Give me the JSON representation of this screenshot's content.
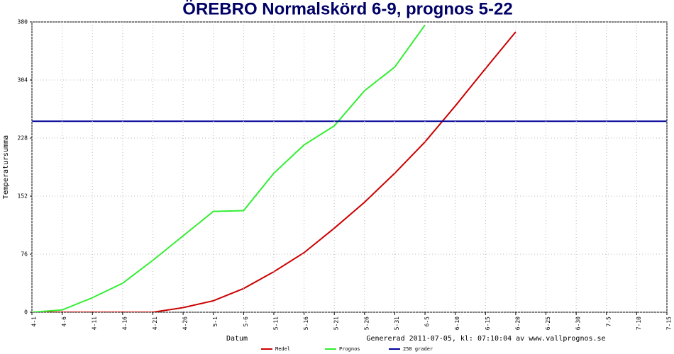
{
  "chart_data": {
    "type": "line",
    "title": "ÖREBRO Normalskörd 6-9, prognos 5-22",
    "x_label": "Datum",
    "y_label": "Temperatursumma",
    "footnote": "Genererad 2011-07-05, kl: 07:10:04 av www.vallprognos.se",
    "categories": [
      "4-1",
      "4-6",
      "4-11",
      "4-16",
      "4-21",
      "4-26",
      "5-1",
      "5-6",
      "5-11",
      "5-16",
      "5-21",
      "5-26",
      "5-31",
      "6-5",
      "6-10",
      "6-15",
      "6-20",
      "6-25",
      "6-30",
      "7-5",
      "7-10",
      "7-15"
    ],
    "ylim": [
      0,
      380
    ],
    "yticks": [
      0,
      76,
      152,
      228,
      304,
      380
    ],
    "grid": true,
    "series": [
      {
        "name": "Medel",
        "color": "#cc0000",
        "values": [
          0,
          0,
          0,
          0,
          0,
          6,
          15,
          31,
          53,
          78,
          110,
          144,
          182,
          223,
          270,
          319,
          367,
          null,
          null,
          null,
          null,
          null
        ]
      },
      {
        "name": "Prognos",
        "color": "#33ee33",
        "values": [
          0,
          3,
          19,
          38,
          68,
          100,
          132,
          133,
          182,
          219,
          244,
          290,
          321,
          376,
          null,
          null,
          null,
          null,
          null,
          null,
          null,
          null
        ]
      },
      {
        "name": "250 grader",
        "color": "#000099",
        "values": [
          250,
          250,
          250,
          250,
          250,
          250,
          250,
          250,
          250,
          250,
          250,
          250,
          250,
          250,
          250,
          250,
          250,
          250,
          250,
          250,
          250,
          250
        ]
      }
    ]
  }
}
